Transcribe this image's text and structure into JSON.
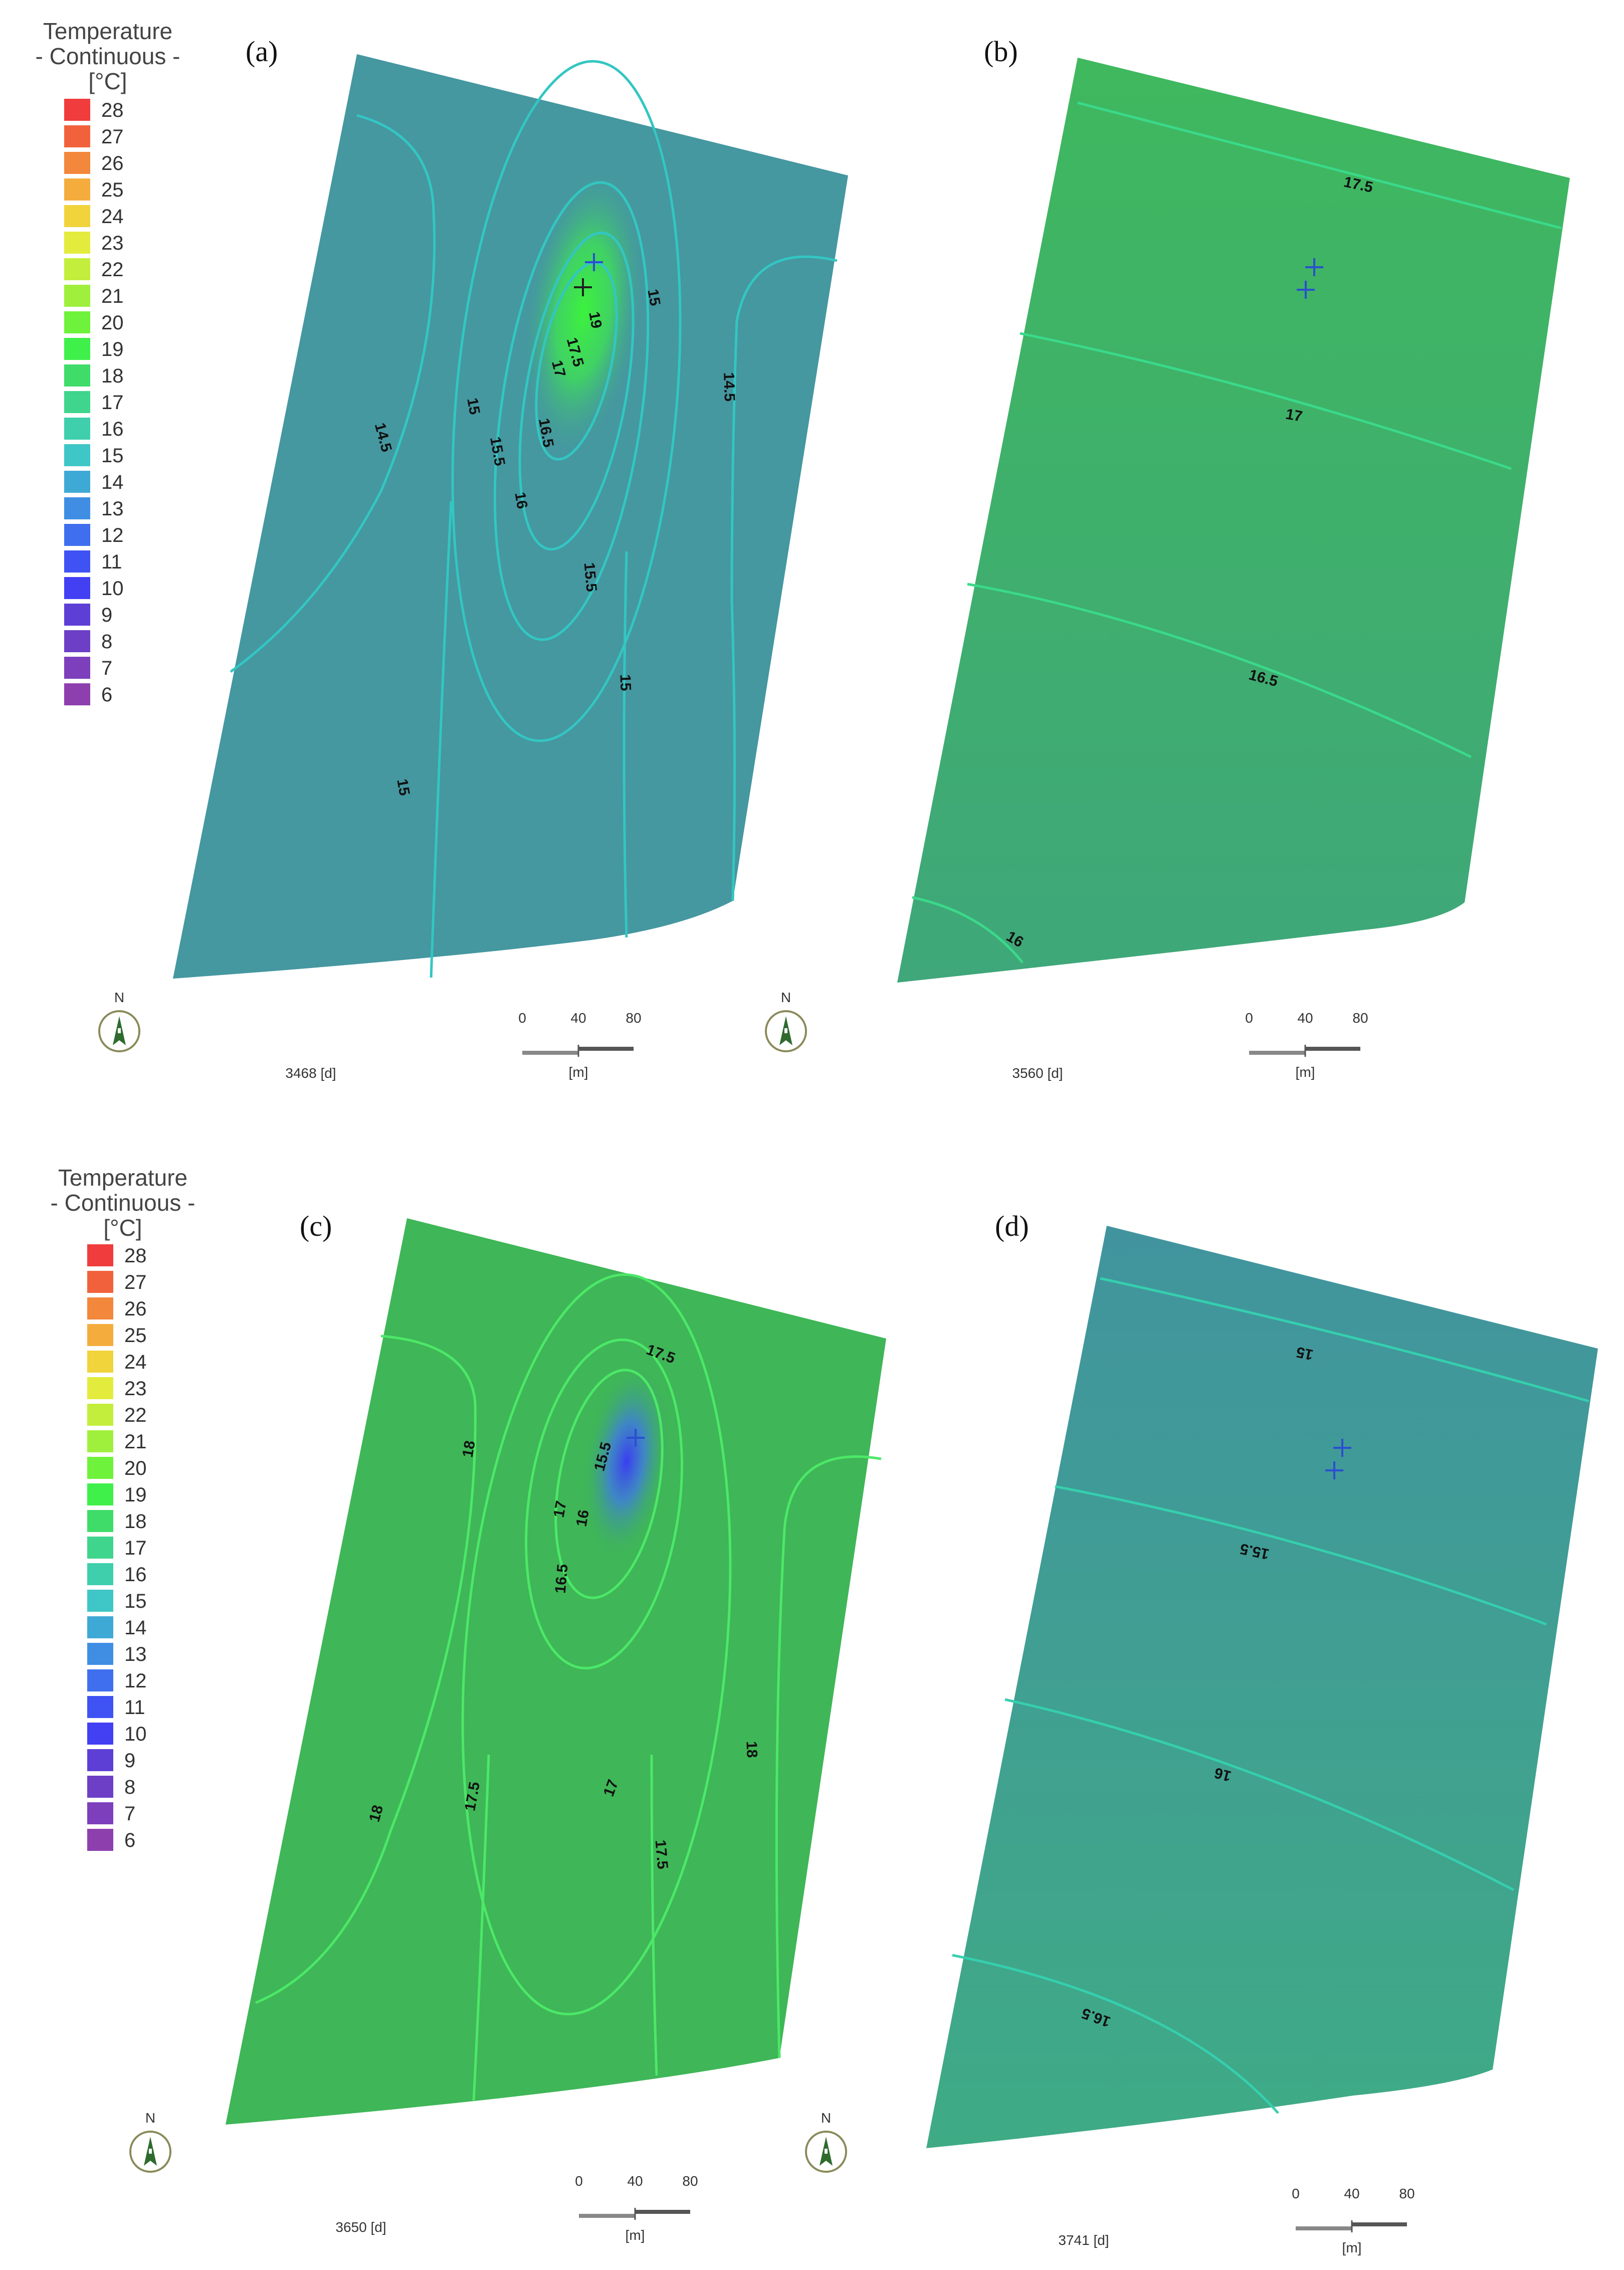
{
  "legend": {
    "title_line1": "Temperature",
    "title_line2": "- Continuous -",
    "unit": "[°C]",
    "entries": [
      {
        "label": "28",
        "color": "#f03c3c"
      },
      {
        "label": "27",
        "color": "#f1623c"
      },
      {
        "label": "26",
        "color": "#f3873c"
      },
      {
        "label": "25",
        "color": "#f4ad3c"
      },
      {
        "label": "24",
        "color": "#f1d33c"
      },
      {
        "label": "23",
        "color": "#e3ec3c"
      },
      {
        "label": "22",
        "color": "#c3ee3c"
      },
      {
        "label": "21",
        "color": "#9ff03c"
      },
      {
        "label": "20",
        "color": "#6ff23c"
      },
      {
        "label": "19",
        "color": "#3ff04a"
      },
      {
        "label": "18",
        "color": "#3fdc6a"
      },
      {
        "label": "17",
        "color": "#3fd58d"
      },
      {
        "label": "16",
        "color": "#3fcfad"
      },
      {
        "label": "15",
        "color": "#3fc6c6"
      },
      {
        "label": "14",
        "color": "#3fa9d6"
      },
      {
        "label": "13",
        "color": "#3f8ee4"
      },
      {
        "label": "12",
        "color": "#3f6fee"
      },
      {
        "label": "11",
        "color": "#3f52f4"
      },
      {
        "label": "10",
        "color": "#4340f4"
      },
      {
        "label": "9",
        "color": "#5d3fd6"
      },
      {
        "label": "8",
        "color": "#6d3fc6"
      },
      {
        "label": "7",
        "color": "#7e3fbc"
      },
      {
        "label": "6",
        "color": "#8e3fae"
      }
    ]
  },
  "scale_bar": {
    "tick_0": "0",
    "tick_1": "40",
    "tick_2": "80",
    "unit": "[m]"
  },
  "north_label": "N",
  "panels": [
    {
      "letter": "(a)",
      "time": "3468 [d]",
      "fill_color": "#4597a0",
      "line_color": "#33c6c2",
      "contour_labels": [
        "15",
        "14.5",
        "14.5",
        "15",
        "15.5",
        "16.5",
        "16",
        "17",
        "17.5",
        "19",
        "15.5",
        "15",
        "15"
      ]
    },
    {
      "letter": "(b)",
      "time": "3560 [d]",
      "fill_color": "#3fb16a",
      "line_color": "#3ad98a",
      "contour_labels": [
        "17.5",
        "17",
        "16.5",
        "16"
      ]
    },
    {
      "letter": "(c)",
      "time": "3650 [d]",
      "fill_color": "#3fb657",
      "line_color": "#4ce868",
      "contour_labels": [
        "17.5",
        "18",
        "15.5",
        "17",
        "16",
        "16.5",
        "18",
        "17.5",
        "17",
        "17.5",
        "18"
      ]
    },
    {
      "letter": "(d)",
      "time": "3741 [d]",
      "fill_color": "#3f9f90",
      "line_color": "#35cfae",
      "contour_labels": [
        "15",
        "15.5",
        "16",
        "16.5"
      ]
    }
  ]
}
